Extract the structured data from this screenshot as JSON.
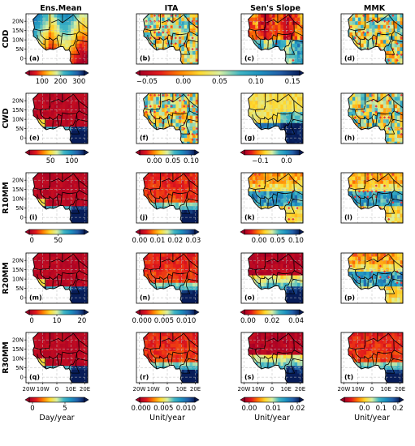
{
  "chart_data": {
    "type": "heatmap",
    "region": "West Africa",
    "columns": [
      "Ens.Mean",
      "ITA",
      "Sen's Slope",
      "MMK"
    ],
    "rows": [
      {
        "name": "CDD",
        "panels": [
          {
            "label": "(a)",
            "column": "Ens.Mean",
            "palette": "rainbow",
            "pattern": "dry-north"
          },
          {
            "label": "(b)",
            "column": "ITA",
            "palette": "rainbow",
            "pattern": "mixed-trend",
            "markers": "dense"
          },
          {
            "label": "(c)",
            "column": "Sen's Slope",
            "palette": "rainbow",
            "pattern": "warm-north",
            "markers": "sparse"
          },
          {
            "label": "(d)",
            "column": "MMK",
            "palette": "rainbow",
            "pattern": "mixed-trend",
            "markers": "medium"
          }
        ],
        "colorbars": [
          {
            "under_columns": [
              0
            ],
            "ticks": [
              "100",
              "200",
              "300"
            ],
            "vmin": 30,
            "vmax": 330
          },
          {
            "under_columns": [
              1,
              2
            ],
            "ticks": [
              "−0.05",
              "0.00",
              "0.05",
              "0.10",
              "0.15"
            ],
            "vmin": -0.06,
            "vmax": 0.16
          }
        ]
      },
      {
        "name": "CWD",
        "panels": [
          {
            "label": "(e)",
            "column": "Ens.Mean",
            "palette": "rainbow",
            "pattern": "wet-south"
          },
          {
            "label": "(f)",
            "column": "ITA",
            "palette": "rainbow",
            "pattern": "mixed-trend",
            "markers": "dense"
          },
          {
            "label": "(g)",
            "column": "Sen's Slope",
            "palette": "rainbow",
            "pattern": "cool-south"
          },
          {
            "label": "(h)",
            "column": "MMK",
            "palette": "rainbow",
            "pattern": "mixed-trend",
            "markers": "medium"
          }
        ],
        "colorbars": [
          {
            "under_columns": [
              0
            ],
            "ticks": [
              "50",
              "100"
            ],
            "vmin": 0,
            "vmax": 130
          },
          {
            "under_columns": [
              1
            ],
            "ticks": [
              "0.00",
              "0.05",
              "0.10"
            ],
            "vmin": -0.04,
            "vmax": 0.11
          },
          {
            "under_columns": [
              2
            ],
            "ticks": [
              "−0.1",
              "0.0"
            ],
            "vmin": -0.16,
            "vmax": 0.05
          }
        ]
      },
      {
        "name": "R10MM",
        "panels": [
          {
            "label": "(i)",
            "column": "Ens.Mean",
            "palette": "rainbow",
            "pattern": "wet-south"
          },
          {
            "label": "(j)",
            "column": "ITA",
            "palette": "rainbow",
            "pattern": "wet-south-soft"
          },
          {
            "label": "(k)",
            "column": "Sen's Slope",
            "palette": "rainbow",
            "pattern": "band",
            "markers": "sparse"
          },
          {
            "label": "(l)",
            "column": "MMK",
            "palette": "rainbow",
            "pattern": "band",
            "markers": "medium"
          }
        ],
        "colorbars": [
          {
            "under_columns": [
              0
            ],
            "ticks": [
              "0",
              "50"
            ],
            "vmin": -5,
            "vmax": 100
          },
          {
            "under_columns": [
              1
            ],
            "ticks": [
              "0.00",
              "0.01",
              "0.02",
              "0.03"
            ],
            "vmin": 0,
            "vmax": 0.031
          },
          {
            "under_columns": [
              2
            ],
            "ticks": [
              "0.00",
              "0.05",
              "0.10"
            ],
            "vmin": -0.04,
            "vmax": 0.11
          }
        ]
      },
      {
        "name": "R20MM",
        "panels": [
          {
            "label": "(m)",
            "column": "Ens.Mean",
            "palette": "rainbow",
            "pattern": "wet-south"
          },
          {
            "label": "(n)",
            "column": "ITA",
            "palette": "rainbow",
            "pattern": "wet-south-soft"
          },
          {
            "label": "(o)",
            "column": "Sen's Slope",
            "palette": "rainbow",
            "pattern": "dark-north"
          },
          {
            "label": "(p)",
            "column": "MMK",
            "palette": "rainbow",
            "pattern": "band",
            "markers": "medium"
          }
        ],
        "colorbars": [
          {
            "under_columns": [
              0
            ],
            "ticks": [
              "0",
              "10",
              "20"
            ],
            "vmin": -1,
            "vmax": 21
          },
          {
            "under_columns": [
              1
            ],
            "ticks": [
              "0.000",
              "0.005",
              "0.010"
            ],
            "vmin": -0.0005,
            "vmax": 0.012
          },
          {
            "under_columns": [
              2
            ],
            "ticks": [
              "0.00",
              "0.02",
              "0.04"
            ],
            "vmin": -0.003,
            "vmax": 0.043
          }
        ]
      },
      {
        "name": "R30MM",
        "panels": [
          {
            "label": "(q)",
            "column": "Ens.Mean",
            "palette": "rainbow",
            "pattern": "wet-south"
          },
          {
            "label": "(r)",
            "column": "ITA",
            "palette": "rainbow",
            "pattern": "wet-south-soft"
          },
          {
            "label": "(s)",
            "column": "Sen's Slope",
            "palette": "rainbow",
            "pattern": "dark-north"
          },
          {
            "label": "(t)",
            "column": "MMK",
            "palette": "rainbow",
            "pattern": "wet-south-soft"
          }
        ],
        "colorbars": [
          {
            "under_columns": [
              0
            ],
            "ticks": [
              "0",
              "5"
            ],
            "vmin": -0.5,
            "vmax": 8,
            "unit": "Day/year"
          },
          {
            "under_columns": [
              1
            ],
            "ticks": [
              "0.000",
              "0.005",
              "0.010"
            ],
            "vmin": -0.0003,
            "vmax": 0.012,
            "unit": "Unit/year"
          },
          {
            "under_columns": [
              2
            ],
            "ticks": [
              "0.00",
              "0.01",
              "0.02"
            ],
            "vmin": -0.002,
            "vmax": 0.021,
            "unit": "Unit/year"
          },
          {
            "under_columns": [
              3
            ],
            "ticks": [
              "0.0",
              "0.1",
              "0.2"
            ],
            "vmin": -0.12,
            "vmax": 0.21,
            "unit": "Unit/year"
          }
        ]
      }
    ],
    "y_ticks": [
      "20N",
      "15N",
      "10N",
      "5N",
      "0"
    ],
    "y_values": [
      20,
      15,
      10,
      5,
      0
    ],
    "x_ticks": [
      "20W",
      "10W",
      "0",
      "10E",
      "20E"
    ],
    "x_values": [
      -20,
      -10,
      0,
      10,
      20
    ],
    "xlim": [
      -22,
      22
    ],
    "ylim": [
      -3,
      24
    ],
    "grid": "dashed",
    "colormap": [
      "#a50026",
      "#e31a1c",
      "#ff7f00",
      "#ffd92f",
      "#d9f0a3",
      "#41b6c4",
      "#1d91c0",
      "#225ea8",
      "#081d58"
    ]
  }
}
